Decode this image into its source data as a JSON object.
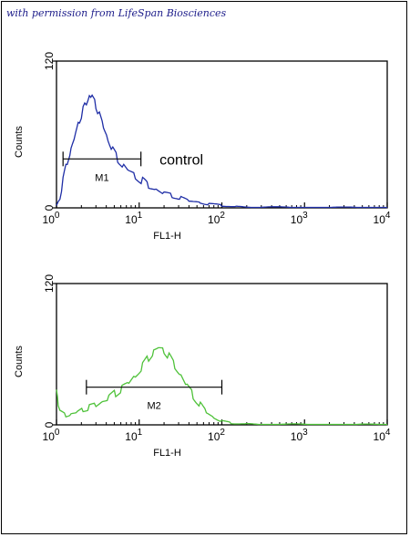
{
  "credit": "with permission from LifeSpan Biosciences",
  "chart_data": [
    {
      "type": "line",
      "xlabel": "FL1-H",
      "ylabel": "Counts",
      "xscale": "log",
      "xlim": [
        1,
        10000
      ],
      "ylim": [
        0,
        120
      ],
      "x_ticks": [
        {
          "value": 1,
          "base": "10",
          "exp": "0"
        },
        {
          "value": 10,
          "base": "10",
          "exp": "1"
        },
        {
          "value": 100,
          "base": "10",
          "exp": "2"
        },
        {
          "value": 1000,
          "base": "10",
          "exp": "3"
        },
        {
          "value": 10000,
          "base": "10",
          "exp": "4"
        }
      ],
      "y_ticks": [
        {
          "value": 0,
          "label": "0"
        },
        {
          "value": 120,
          "label": "120"
        }
      ],
      "grid": false,
      "series": [
        {
          "color": "#1f2ea6",
          "x": [
            1.0,
            1.1,
            1.2,
            1.35,
            1.5,
            1.7,
            1.9,
            2.1,
            2.3,
            2.5,
            2.7,
            3.0,
            3.3,
            3.7,
            4.2,
            4.8,
            5.5,
            6.5,
            7.5,
            9.0,
            11,
            13,
            16,
            20,
            25,
            32,
            40,
            55,
            70,
            100,
            150,
            300,
            1000,
            3000,
            10000
          ],
          "y": [
            2,
            8,
            22,
            38,
            48,
            60,
            72,
            80,
            86,
            92,
            90,
            84,
            76,
            66,
            56,
            47,
            40,
            34,
            30,
            26,
            22,
            18,
            15,
            12,
            10,
            8,
            6,
            4,
            3,
            2,
            1,
            0.5,
            0.3,
            0.2,
            0.2
          ]
        }
      ],
      "annotations": [
        {
          "type": "marker",
          "label": "M1",
          "x_range": [
            1.2,
            10.5
          ],
          "y": 40
        },
        {
          "type": "text",
          "label": "control",
          "x": 13,
          "y": 40
        }
      ]
    },
    {
      "type": "line",
      "xlabel": "FL1-H",
      "ylabel": "Counts",
      "xscale": "log",
      "xlim": [
        1,
        10000
      ],
      "ylim": [
        0,
        120
      ],
      "x_ticks": [
        {
          "value": 1,
          "base": "10",
          "exp": "0"
        },
        {
          "value": 10,
          "base": "10",
          "exp": "1"
        },
        {
          "value": 100,
          "base": "10",
          "exp": "2"
        },
        {
          "value": 1000,
          "base": "10",
          "exp": "3"
        },
        {
          "value": 10000,
          "base": "10",
          "exp": "4"
        }
      ],
      "y_ticks": [
        {
          "value": 0,
          "label": "0"
        },
        {
          "value": 120,
          "label": "120"
        }
      ],
      "grid": false,
      "series": [
        {
          "color": "#4fc23a",
          "x": [
            1.0,
            1.05,
            1.15,
            1.3,
            1.5,
            1.8,
            2.1,
            2.5,
            3.0,
            3.6,
            4.3,
            5.2,
            6.2,
            7.5,
            9.0,
            11,
            13,
            15,
            17,
            20,
            23,
            27,
            32,
            38,
            45,
            55,
            65,
            80,
            100,
            130,
            200,
            500,
            2000,
            10000
          ],
          "y": [
            30,
            18,
            10,
            8,
            9,
            11,
            13,
            15,
            17,
            20,
            23,
            27,
            31,
            36,
            42,
            50,
            57,
            62,
            65,
            63,
            58,
            50,
            42,
            33,
            25,
            17,
            11,
            6,
            3,
            1.5,
            0.8,
            0.4,
            0.2,
            0.2
          ]
        }
      ],
      "annotations": [
        {
          "type": "marker",
          "label": "M2",
          "x_range": [
            2.3,
            100
          ],
          "y": 32
        }
      ]
    }
  ]
}
